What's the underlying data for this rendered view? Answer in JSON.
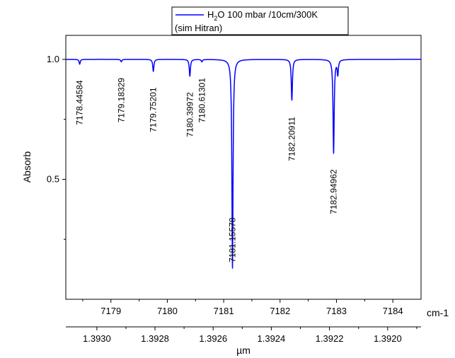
{
  "chart_data": {
    "type": "line",
    "ylabel": "Absorb",
    "top_axis_unit": "cm-1",
    "bottom_axis_unit": "µm",
    "legend": {
      "line1_prefix": "H",
      "line1_sub": "2",
      "line1_suffix": "O 100 mbar /10cm/300K",
      "line2": "(sim Hitran)",
      "placement": "top-center",
      "color": "#0000ff"
    },
    "xlim": [
      7178.2,
      7184.5
    ],
    "ylim": [
      0.0,
      1.1
    ],
    "y_ticks": [
      {
        "value": 1.0,
        "label": "1.0"
      },
      {
        "value": 0.5,
        "label": "0.5"
      }
    ],
    "y_minor_ticks": [
      0.75,
      0.25
    ],
    "x_ticks": [
      {
        "value": 7179,
        "label": "7179"
      },
      {
        "value": 7180,
        "label": "7180"
      },
      {
        "value": 7181,
        "label": "7181"
      },
      {
        "value": 7182,
        "label": "7182"
      },
      {
        "value": 7183,
        "label": "7183"
      },
      {
        "value": 7184,
        "label": "7184"
      }
    ],
    "x_minor_ticks": [
      7178.5,
      7179.5,
      7180.5,
      7181.5,
      7182.5,
      7183.5
    ],
    "um_ticks": [
      {
        "value": 1.392,
        "label": "1.3920"
      },
      {
        "value": 1.3922,
        "label": "1.3922"
      },
      {
        "value": 1.3924,
        "label": "1.3924"
      },
      {
        "value": 1.3926,
        "label": "1.3926"
      },
      {
        "value": 1.3928,
        "label": "1.3928"
      },
      {
        "value": 1.393,
        "label": "1.3930"
      }
    ],
    "um_minor_ticks": [
      1.3919,
      1.3921,
      1.3923,
      1.3925,
      1.3927,
      1.3929
    ],
    "baseline": 1.0,
    "width_cm1": 0.012,
    "peaks": [
      {
        "x": 7178.44584,
        "depth": 0.02,
        "label": "7178.44584"
      },
      {
        "x": 7179.18329,
        "depth": 0.01,
        "label": "7179.18329"
      },
      {
        "x": 7179.75201,
        "depth": 0.05,
        "label": "7179.75201"
      },
      {
        "x": 7180.39972,
        "depth": 0.07,
        "label": "7180.39972"
      },
      {
        "x": 7180.61301,
        "depth": 0.01,
        "label": "7180.61301"
      },
      {
        "x": 7181.15578,
        "depth": 0.87,
        "label": "7181.15578"
      },
      {
        "x": 7182.20911,
        "depth": 0.17,
        "label": "7182.20911"
      },
      {
        "x": 7182.94962,
        "depth": 0.39,
        "label": "7182.94962"
      },
      {
        "x": 7183.0234,
        "depth": 0.06,
        "label": ""
      }
    ]
  }
}
